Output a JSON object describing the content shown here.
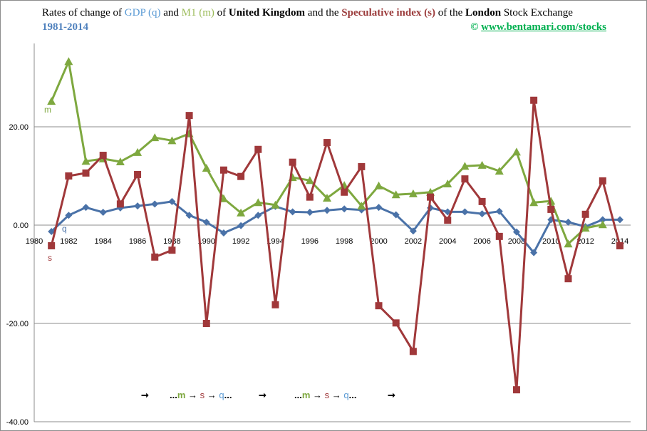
{
  "header": {
    "title_parts": [
      "Rates of change  of ",
      "GDP (q)",
      " and ",
      "M1 (m)",
      "  of ",
      "United Kingdom",
      "  and the ",
      "Speculative index (s)",
      " of the ",
      "London",
      " Stock Exchange"
    ],
    "subtitle": "1981-2014",
    "copyright": "©",
    "link": "www.bentamari.com/stocks"
  },
  "colors": {
    "q": "#4a72a8",
    "m": "#7ea83f",
    "s": "#a0383a",
    "grid": "#8c8c8c"
  },
  "chart_data": {
    "type": "line",
    "title": "Rates of change of GDP (q) and M1 (m) of United Kingdom and the Speculative index (s) of the London Stock Exchange 1981-2014",
    "xlim": [
      1980,
      2014
    ],
    "ylim": [
      -40,
      33
    ],
    "xticks": [
      "1980",
      "1982",
      "1984",
      "1986",
      "1988",
      "1990",
      "1992",
      "1994",
      "1996",
      "1998",
      "2000",
      "2002",
      "2004",
      "2006",
      "2008",
      "2010",
      "2012",
      "2014"
    ],
    "yticks": [
      {
        "v": 20,
        "label": "20.00"
      },
      {
        "v": 0,
        "label": "0.00"
      },
      {
        "v": -20,
        "label": "-20.00"
      },
      {
        "v": -40,
        "label": "-40.00"
      }
    ],
    "grid": true,
    "x": [
      1981,
      1982,
      1983,
      1984,
      1985,
      1986,
      1987,
      1988,
      1989,
      1990,
      1991,
      1992,
      1993,
      1994,
      1995,
      1996,
      1997,
      1998,
      1999,
      2000,
      2001,
      2002,
      2003,
      2004,
      2005,
      2006,
      2007,
      2008,
      2009,
      2010,
      2011,
      2012,
      2013,
      2014
    ],
    "series": [
      {
        "name": "q",
        "label": "q",
        "marker": "diamond",
        "values": [
          -1.3,
          2.0,
          3.6,
          2.6,
          3.5,
          3.9,
          4.3,
          4.8,
          2.0,
          0.6,
          -1.6,
          -0.1,
          2.0,
          3.8,
          2.7,
          2.6,
          3.0,
          3.3,
          3.1,
          3.6,
          2.1,
          -1.2,
          3.5,
          2.7,
          2.7,
          2.3,
          2.8,
          -1.4,
          -5.6,
          1.1,
          0.6,
          -0.3,
          1.1,
          1.1
        ]
      },
      {
        "name": "m",
        "label": "m",
        "marker": "triangle",
        "values": [
          25.2,
          33.3,
          13.0,
          13.5,
          12.9,
          14.8,
          17.8,
          17.2,
          18.6,
          11.6,
          5.4,
          2.5,
          4.6,
          4.1,
          9.7,
          9.1,
          5.5,
          8.1,
          3.9,
          8.0,
          6.2,
          6.4,
          6.7,
          8.4,
          12.0,
          12.2,
          11.0,
          14.9,
          4.6,
          4.9,
          -3.8,
          -0.6,
          0.1,
          null
        ]
      },
      {
        "name": "s",
        "label": "s",
        "marker": "square",
        "values": [
          -4.2,
          10.0,
          10.6,
          14.2,
          4.3,
          10.3,
          -6.5,
          -5.1,
          22.3,
          -20.0,
          11.2,
          9.9,
          15.4,
          -16.2,
          12.8,
          5.7,
          16.8,
          6.7,
          11.9,
          -16.4,
          -19.9,
          -25.7,
          5.7,
          1.0,
          9.4,
          4.8,
          -2.3,
          -33.5,
          25.4,
          3.2,
          -10.9,
          2.2,
          9.0,
          -4.2
        ]
      }
    ],
    "annotations": {
      "arrow": "➞",
      "seq_start": "...",
      "m": "m",
      "arrow_small": " → ",
      "s": "s",
      "q": "q",
      "seq_end": "..."
    }
  }
}
